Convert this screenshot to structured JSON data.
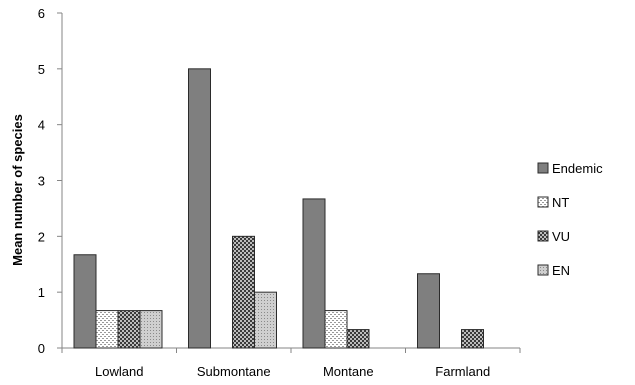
{
  "chart_data": {
    "type": "bar",
    "ylabel": "Mean number of species",
    "xlabel": "",
    "categories": [
      "Lowland",
      "Submontane",
      "Montane",
      "Farmland"
    ],
    "ylim": [
      0,
      6
    ],
    "yticks": [
      "0",
      "1",
      "2",
      "3",
      "4",
      "5",
      "6"
    ],
    "grid": false,
    "legend_position": "right",
    "series": [
      {
        "name": "Endemic",
        "values": [
          1.67,
          5.0,
          2.67,
          1.33
        ],
        "color": "#7f7f7f",
        "pattern": "solid"
      },
      {
        "name": "NT",
        "values": [
          0.67,
          0,
          0.67,
          0
        ],
        "color": "#dcdcdc",
        "pattern": "dotted"
      },
      {
        "name": "VU",
        "values": [
          0.67,
          2.0,
          0.33,
          0.33
        ],
        "color": "#6a6a6a",
        "pattern": "crosshatch"
      },
      {
        "name": "EN",
        "values": [
          0.67,
          1.0,
          0,
          0
        ],
        "color": "#c0c0c0",
        "pattern": "fine-dots"
      }
    ]
  }
}
